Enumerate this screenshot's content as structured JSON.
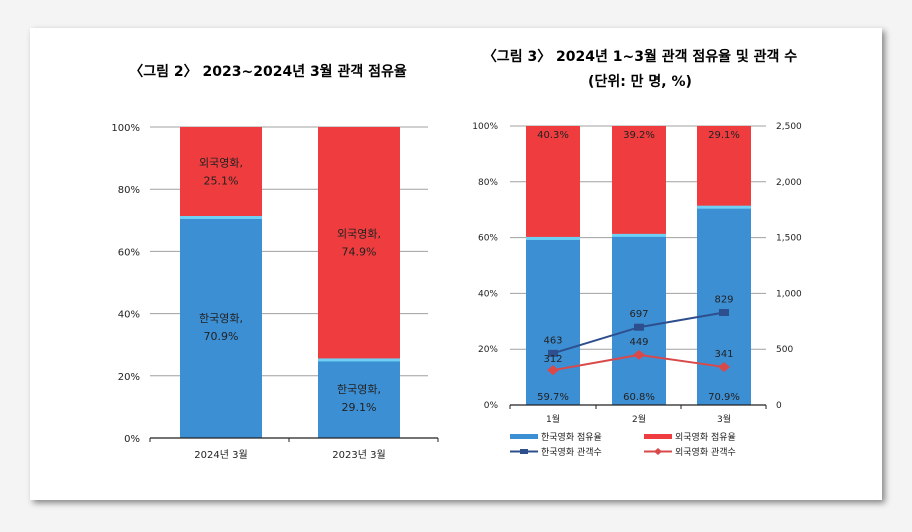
{
  "chart_data": [
    {
      "type": "bar",
      "stacked": true,
      "title": "〈그림 2〉 2023~2024년 3월 관객 점유율",
      "categories": [
        "2024년 3월",
        "2023년 3월"
      ],
      "series": [
        {
          "name": "한국영화",
          "values": [
            70.9,
            25.1
          ],
          "color": "#3d8fd4",
          "labels": [
            "한국영화,",
            "한국영화,"
          ]
        },
        {
          "name": "외국영화",
          "values": [
            29.1,
            74.9
          ],
          "color": "#ef3d3f",
          "labels": [
            "외국영화,",
            "외국영화,"
          ]
        }
      ],
      "data_labels": [
        [
          "70.9%",
          "25.1%"
        ],
        [
          "29.1%",
          "74.9%"
        ]
      ],
      "ylim": [
        0,
        100
      ],
      "yticks": [
        "0%",
        "20%",
        "40%",
        "60%",
        "80%",
        "100%"
      ],
      "grid": true
    },
    {
      "type": "bar+line",
      "stacked": true,
      "title": "〈그림 3〉 2024년 1~3월 관객 점유율 및 관객 수",
      "subtitle": "(단위: 만 명, %)",
      "categories": [
        "1월",
        "2월",
        "3월"
      ],
      "series": [
        {
          "name": "한국영화 점유율",
          "kind": "bar",
          "axis": "left",
          "values": [
            59.7,
            60.8,
            70.9
          ],
          "labels": [
            "59.7%",
            "60.8%",
            "70.9%"
          ],
          "color": "#3d8fd4"
        },
        {
          "name": "외국영화 점유율",
          "kind": "bar",
          "axis": "left",
          "values": [
            40.3,
            39.2,
            29.1
          ],
          "labels": [
            "40.3%",
            "39.2%",
            "29.1%"
          ],
          "color": "#ef3d3f"
        },
        {
          "name": "한국영화 관객수",
          "kind": "line",
          "axis": "right",
          "values": [
            463,
            697,
            829
          ],
          "labels": [
            "463",
            "697",
            "829"
          ],
          "color": "#2d4f8e"
        },
        {
          "name": "외국영화 관객수",
          "kind": "line",
          "axis": "right",
          "values": [
            312,
            449,
            341
          ],
          "labels": [
            "312",
            "449",
            "341"
          ],
          "color": "#d9494a"
        }
      ],
      "ylim": [
        0,
        100
      ],
      "y2lim": [
        0,
        2500
      ],
      "yticks": [
        "0%",
        "20%",
        "40%",
        "60%",
        "80%",
        "100%"
      ],
      "y2ticks": [
        "0",
        "500",
        "1,000",
        "1,500",
        "2,000",
        "2,500"
      ],
      "grid": true,
      "legend": "bottom"
    }
  ]
}
